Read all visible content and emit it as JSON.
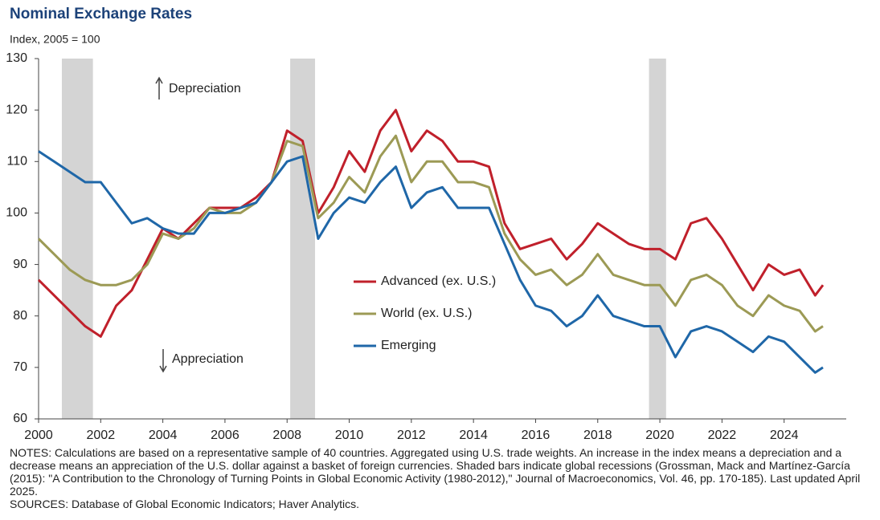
{
  "chart_data": {
    "type": "line",
    "title": "Nominal Exchange Rates",
    "subtitle": "Index, 2005 = 100",
    "annotations": [
      "Depreciation",
      "Appreciation"
    ],
    "x": [
      2000,
      2000.5,
      2001,
      2001.5,
      2002,
      2002.5,
      2003,
      2003.5,
      2004,
      2004.5,
      2005,
      2005.5,
      2006,
      2006.5,
      2007,
      2007.5,
      2008,
      2008.5,
      2009,
      2009.5,
      2010,
      2010.5,
      2011,
      2011.5,
      2012,
      2012.5,
      2013,
      2013.5,
      2014,
      2014.5,
      2015,
      2015.5,
      2016,
      2016.5,
      2017,
      2017.5,
      2018,
      2018.5,
      2019,
      2019.5,
      2020,
      2020.5,
      2021,
      2021.5,
      2022,
      2022.5,
      2023,
      2023.5,
      2024,
      2024.5,
      2025,
      2025.25
    ],
    "series": [
      {
        "name": "Advanced (ex. U.S.)",
        "color": "#c0202b",
        "values": [
          87,
          84,
          81,
          78,
          76,
          82,
          85,
          91,
          97,
          95,
          98,
          101,
          101,
          101,
          103,
          106,
          116,
          114,
          100,
          105,
          112,
          108,
          116,
          120,
          112,
          116,
          114,
          110,
          110,
          109,
          98,
          93,
          94,
          95,
          91,
          94,
          98,
          96,
          94,
          93,
          93,
          91,
          98,
          99,
          95,
          90,
          85,
          90,
          88,
          89,
          84,
          86
        ]
      },
      {
        "name": "World (ex. U.S.)",
        "color": "#9c9a55",
        "values": [
          95,
          92,
          89,
          87,
          86,
          86,
          87,
          90,
          96,
          95,
          97,
          101,
          100,
          100,
          102,
          106,
          114,
          113,
          99,
          102,
          107,
          104,
          111,
          115,
          106,
          110,
          110,
          106,
          106,
          105,
          96,
          91,
          88,
          89,
          86,
          88,
          92,
          88,
          87,
          86,
          86,
          82,
          87,
          88,
          86,
          82,
          80,
          84,
          82,
          81,
          77,
          78
        ]
      },
      {
        "name": "Emerging",
        "color": "#1f67a8",
        "values": [
          112,
          110,
          108,
          106,
          106,
          102,
          98,
          99,
          97,
          96,
          96,
          100,
          100,
          101,
          102,
          106,
          110,
          111,
          95,
          100,
          103,
          102,
          106,
          109,
          101,
          104,
          105,
          101,
          101,
          101,
          94,
          87,
          82,
          81,
          78,
          80,
          84,
          80,
          79,
          78,
          78,
          72,
          77,
          78,
          77,
          75,
          73,
          76,
          75,
          72,
          69,
          70
        ]
      }
    ],
    "recessions": [
      [
        2000.75,
        2001.75
      ],
      [
        2008.1,
        2008.9
      ],
      [
        2019.65,
        2020.2
      ]
    ],
    "xlim": [
      2000,
      2026
    ],
    "xticks": [
      2000,
      2002,
      2004,
      2006,
      2008,
      2010,
      2012,
      2014,
      2016,
      2018,
      2020,
      2022,
      2024
    ],
    "ylim": [
      60,
      130
    ],
    "yticks": [
      60,
      70,
      80,
      90,
      100,
      110,
      120,
      130
    ],
    "grid": false,
    "notes": [
      "NOTES: Calculations are based on a representative sample of 40 countries.  Aggregated using U.S. trade weights.  An increase in the index means a depreciation and a decrease means an appreciation of the U.S. dollar against a basket of foreign currencies.  Shaded bars indicate global recessions (Grossman, Mack and Martínez-García (2015): \"A Contribution to the Chronology of Turning Points in Global Economic Activity (1980-2012),\" Journal of Macroeconomics, Vol. 46, pp. 170-185). Last updated April 2025.",
      "SOURCES: Database of Global Economic Indicators; Haver Analytics."
    ]
  }
}
